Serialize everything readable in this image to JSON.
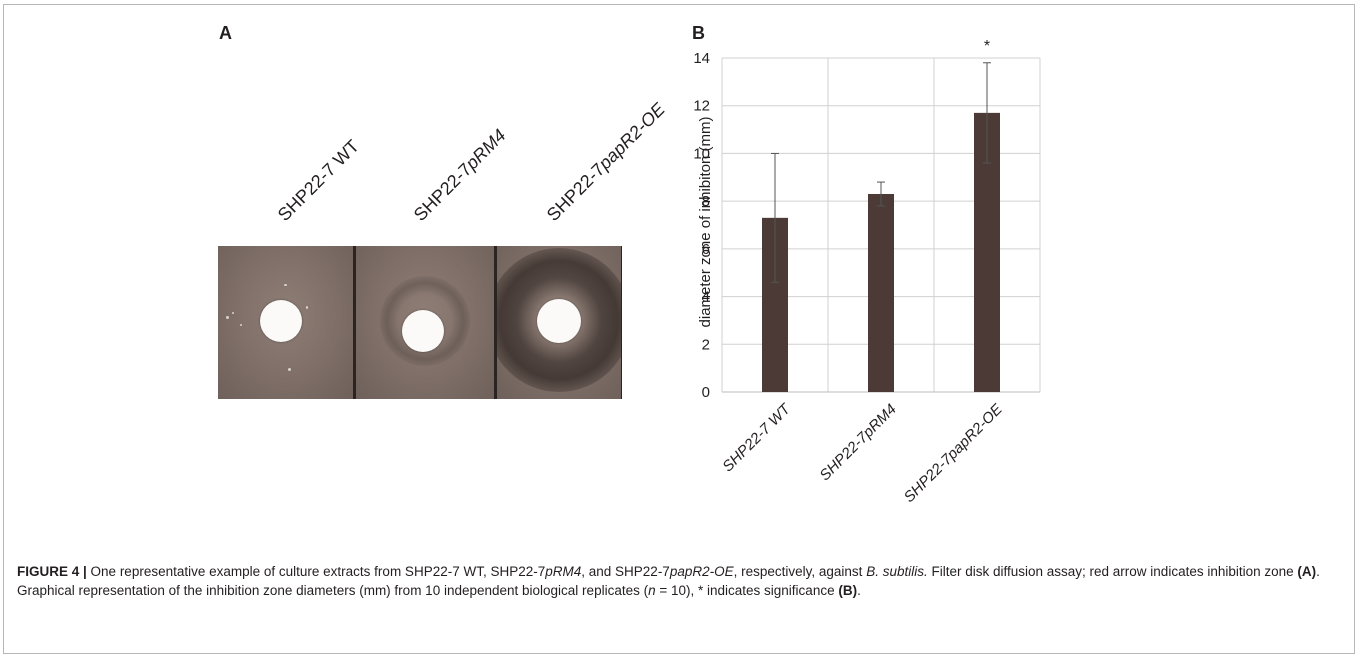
{
  "panel_a": {
    "label": "A",
    "plates": [
      {
        "prefix": "SHP22-7 WT",
        "italic": ""
      },
      {
        "prefix": "SHP22-7",
        "italic": "pRM4"
      },
      {
        "prefix": "SHP22-7",
        "italic": "papR2-OE"
      }
    ]
  },
  "panel_b": {
    "label": "B"
  },
  "chart_data": {
    "type": "bar",
    "categories": [
      "SHP22-7 WT",
      "SHP22-7pRM4",
      "SHP22-7papR2-OE"
    ],
    "values": [
      7.3,
      8.3,
      11.7
    ],
    "error": [
      2.7,
      0.5,
      2.1
    ],
    "annotations": [
      "",
      "",
      "*"
    ],
    "ylabel": "diameter zone of inhibiton (mm)",
    "ylim": [
      0,
      14
    ],
    "yticks": [
      0,
      2,
      4,
      6,
      8,
      10,
      12,
      14
    ],
    "grid": true,
    "bar_color": "#4b3a35"
  },
  "caption": {
    "figure_label": "FIGURE 4 |",
    "t1": " One representative example of culture extracts from SHP22-7 WT, SHP22-7",
    "i1": "pRM4",
    "t2": ", and SHP22-7",
    "i2": "papR2-OE",
    "t3": ", respectively, against ",
    "i3": "B. subtilis.",
    "t4": " Filter disk diffusion assay; red arrow indicates inhibition zone ",
    "b1": "(A)",
    "t5": ". Graphical representation of the inhibition zone diameters (mm) from 10 independent biological replicates (",
    "i4": "n",
    "t6": " = 10), * indicates significance ",
    "b2": "(B)",
    "t7": "."
  }
}
